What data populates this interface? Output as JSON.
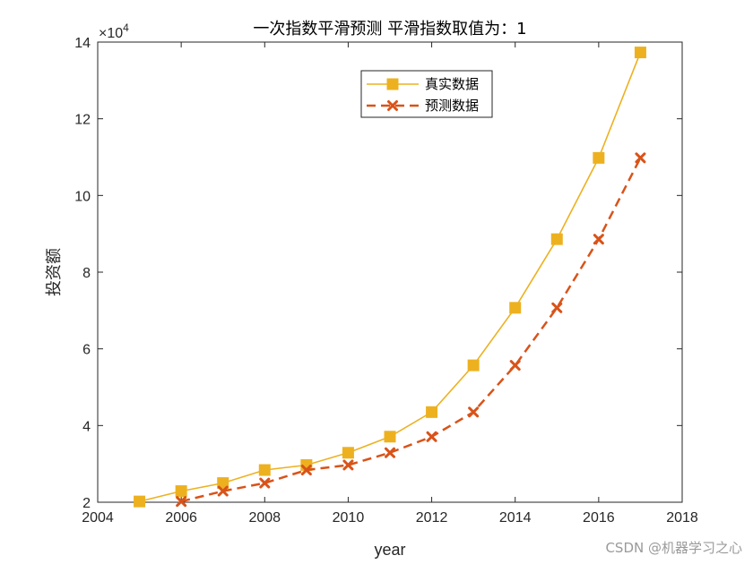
{
  "chart_data": {
    "type": "line",
    "title": "一次指数平滑预测  平滑指数取值为：1",
    "xlabel": "year",
    "ylabel": "投资额",
    "y_exponent_label": "×10",
    "y_exponent_power": "4",
    "xlim": [
      2004,
      2018
    ],
    "ylim": [
      2,
      14
    ],
    "xticks": [
      "2004",
      "2006",
      "2008",
      "2010",
      "2012",
      "2014",
      "2016",
      "2018"
    ],
    "yticks": [
      "2",
      "4",
      "6",
      "8",
      "10",
      "12",
      "14"
    ],
    "legend_position": "top-right",
    "grid": false,
    "series": [
      {
        "name": "真实数据",
        "color": "#EDB120",
        "marker": "square",
        "line_style": "solid",
        "x": [
          2005,
          2006,
          2007,
          2008,
          2009,
          2010,
          2011,
          2012,
          2013,
          2014,
          2015,
          2016,
          2017
        ],
        "y": [
          2.02,
          2.29,
          2.5,
          2.84,
          2.97,
          3.29,
          3.71,
          4.35,
          5.57,
          7.07,
          8.86,
          10.98,
          13.73
        ]
      },
      {
        "name": "预测数据",
        "color": "#D95319",
        "marker": "x",
        "line_style": "dashed",
        "x": [
          2006,
          2007,
          2008,
          2009,
          2010,
          2011,
          2012,
          2013,
          2014,
          2015,
          2016,
          2017
        ],
        "y": [
          2.02,
          2.29,
          2.5,
          2.84,
          2.97,
          3.29,
          3.71,
          4.35,
          5.57,
          7.07,
          8.86,
          10.98
        ]
      }
    ]
  },
  "watermark": "CSDN @机器学习之心"
}
